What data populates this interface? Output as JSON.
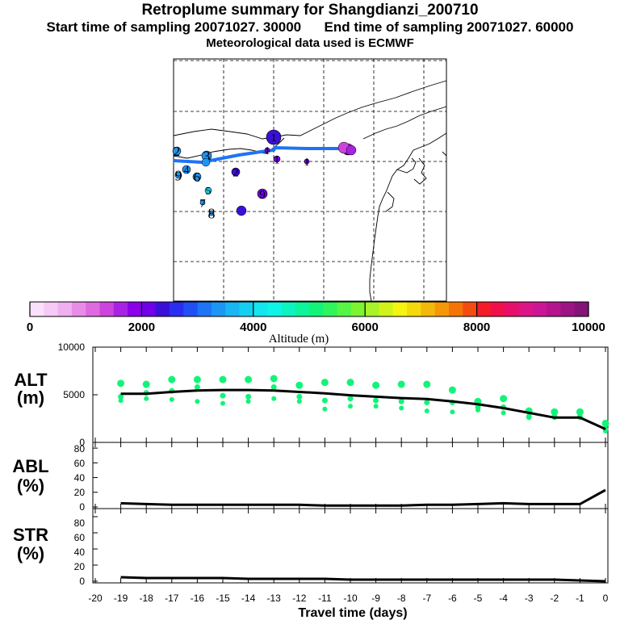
{
  "header": {
    "title": "Retroplume summary for Shangdianzi_200710",
    "start_label": "Start time of sampling 20071027. 30000",
    "end_label": "End time of sampling 20071027. 60000",
    "met_label": "Meteorological data used is ECMWF"
  },
  "colorbar": {
    "ticks": [
      "0",
      "2000",
      "4000",
      "6000",
      "8000",
      "10000"
    ],
    "label": "Altitude (m)",
    "colors": [
      "#fbe0fb",
      "#f6c9f6",
      "#f0b0f0",
      "#e88ce8",
      "#df6adf",
      "#cc44dd",
      "#a822e4",
      "#8a00e8",
      "#6f00e8",
      "#3a10d8",
      "#2a2ef0",
      "#2050f4",
      "#1e74f4",
      "#1c96f4",
      "#18b6f2",
      "#14d0f0",
      "#12e6ee",
      "#10f4e6",
      "#0ef4c0",
      "#0ef49a",
      "#12f478",
      "#30f45c",
      "#56f444",
      "#7cf432",
      "#a8f428",
      "#d0f41a",
      "#f4f410",
      "#f4da0c",
      "#f4b80a",
      "#f49808",
      "#f47408",
      "#f44c10",
      "#f41c28",
      "#f0104a",
      "#e6106c",
      "#dc1486",
      "#cc1496",
      "#b4148e",
      "#9c1484",
      "#841478"
    ]
  },
  "map": {
    "trajectory_color": "#1e74f4",
    "labels": [
      {
        "text": "2",
        "color": "#1c96f4"
      },
      {
        "text": "3",
        "color": "#1c96f4"
      },
      {
        "text": "9",
        "color": "#1c96f4"
      },
      {
        "text": "4",
        "color": "#1c96f4"
      },
      {
        "text": "6",
        "color": "#1c96f4"
      },
      {
        "text": "5",
        "color": "#14d0f0"
      },
      {
        "text": "7",
        "color": "#1c96f4"
      },
      {
        "text": "8",
        "color": "#1c96f4"
      },
      {
        "text": "2",
        "color": "#3a10d8"
      },
      {
        "text": "9",
        "color": "#6f00e8"
      },
      {
        "text": "1",
        "color": "#3a10d8"
      },
      {
        "text": "1",
        "color": "#6f00e8"
      },
      {
        "text": "1",
        "color": "#6f00e8"
      },
      {
        "text": "1",
        "color": "#6f00e8"
      },
      {
        "text": "0",
        "color": "#cc44dd"
      }
    ]
  },
  "panels": {
    "alt": {
      "label_line1": "ALT",
      "label_line2": "(m)",
      "ticks": [
        "10000",
        "5000",
        "0"
      ]
    },
    "abl": {
      "label_line1": "ABL",
      "label_line2": "(%)",
      "ticks": [
        "80",
        "60",
        "40",
        "20",
        "0"
      ]
    },
    "str": {
      "label_line1": "STR",
      "label_line2": "(%)",
      "ticks": [
        "80",
        "60",
        "40",
        "20",
        "0"
      ]
    },
    "xlabel": "Travel time (days)",
    "xticks": [
      "-20",
      "-19",
      "-18",
      "-17",
      "-16",
      "-15",
      "-14",
      "-13",
      "-12",
      "-11",
      "-10",
      "-9",
      "-8",
      "-7",
      "-6",
      "-5",
      "-4",
      "-3",
      "-2",
      "-1",
      "0"
    ]
  },
  "chart_data": {
    "type": "line",
    "xlabel": "Travel time (days)",
    "x": [
      -19,
      -18,
      -17,
      -16,
      -15,
      -14,
      -13,
      -12,
      -11,
      -10,
      -9,
      -8,
      -7,
      -6,
      -5,
      -4,
      -3,
      -2,
      -1,
      0
    ],
    "series": [
      {
        "name": "ALT mean (m)",
        "ylim": [
          0,
          10000
        ],
        "values": [
          5100,
          5100,
          5300,
          5450,
          5500,
          5500,
          5450,
          5300,
          5150,
          4950,
          4800,
          4650,
          4550,
          4300,
          4000,
          3600,
          3100,
          2600,
          2600,
          1400
        ]
      },
      {
        "name": "ABL (%)",
        "ylim": [
          0,
          90
        ],
        "values": [
          5,
          4,
          3,
          3,
          3,
          3,
          3,
          3,
          2,
          2,
          2,
          2,
          3,
          3,
          4,
          5,
          4,
          4,
          4,
          23
        ]
      },
      {
        "name": "STR (%)",
        "ylim": [
          0,
          90
        ],
        "values": [
          5,
          4,
          4,
          4,
          4,
          3,
          3,
          3,
          3,
          2,
          2,
          2,
          2,
          2,
          2,
          2,
          2,
          2,
          1,
          0
        ]
      }
    ],
    "alt_scatter": [
      {
        "x": -19,
        "y": [
          6200,
          4800,
          4400
        ]
      },
      {
        "x": -18,
        "y": [
          6100,
          5200,
          4600
        ]
      },
      {
        "x": -17,
        "y": [
          6600,
          5400,
          4500
        ]
      },
      {
        "x": -16,
        "y": [
          6600,
          5800,
          4300
        ]
      },
      {
        "x": -15,
        "y": [
          6600,
          4900,
          4100
        ]
      },
      {
        "x": -14,
        "y": [
          6600,
          4800,
          4300
        ]
      },
      {
        "x": -13,
        "y": [
          6700,
          5800,
          4600
        ]
      },
      {
        "x": -12,
        "y": [
          6000,
          4800,
          4300
        ]
      },
      {
        "x": -11,
        "y": [
          6300,
          4400,
          3500
        ]
      },
      {
        "x": -10,
        "y": [
          6300,
          4600,
          3800
        ]
      },
      {
        "x": -9,
        "y": [
          6000,
          4400,
          3800
        ]
      },
      {
        "x": -8,
        "y": [
          6100,
          4300,
          3600
        ]
      },
      {
        "x": -7,
        "y": [
          6100,
          4200,
          3300
        ]
      },
      {
        "x": -6,
        "y": [
          5500,
          4200,
          3200
        ]
      },
      {
        "x": -5,
        "y": [
          4300,
          3700,
          3400
        ]
      },
      {
        "x": -4,
        "y": [
          4600,
          3700,
          3100
        ]
      },
      {
        "x": -3,
        "y": [
          3300,
          2700,
          2600
        ]
      },
      {
        "x": -2,
        "y": [
          3200,
          2700,
          2600
        ]
      },
      {
        "x": -1,
        "y": [
          3200,
          2700,
          2600
        ]
      },
      {
        "x": 0,
        "y": [
          2000,
          1400,
          1200
        ]
      }
    ]
  }
}
